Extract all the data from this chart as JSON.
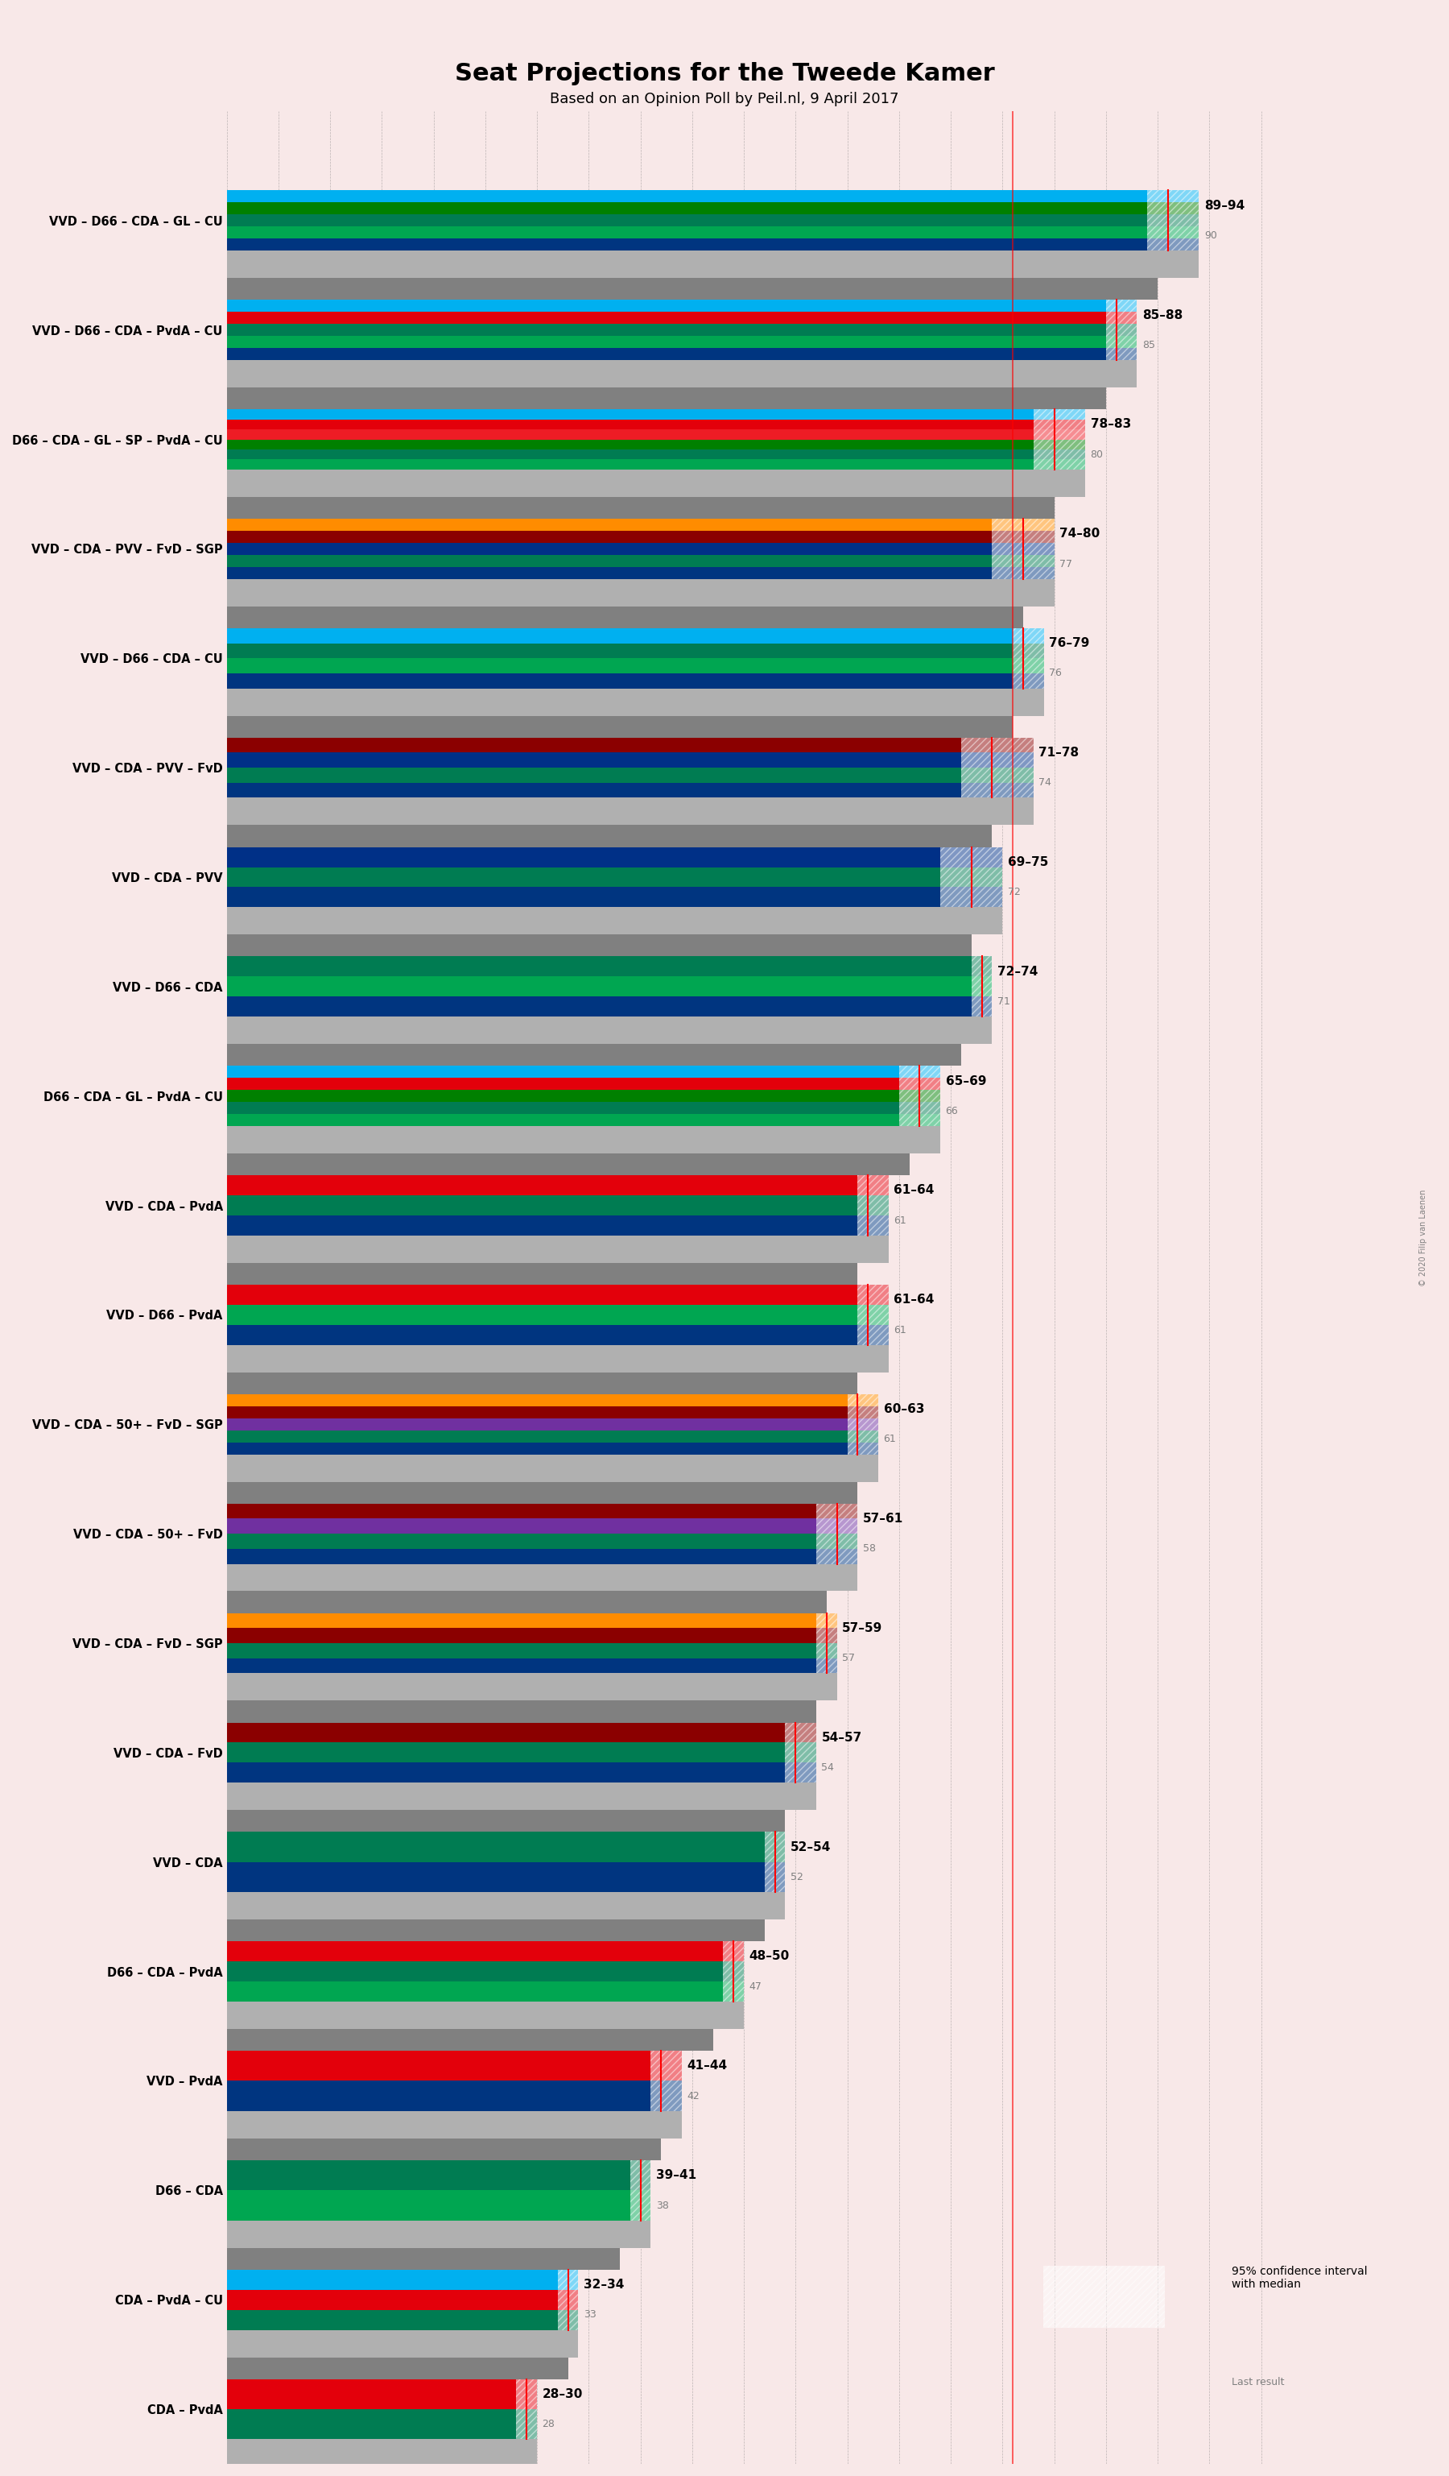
{
  "title": "Seat Projections for the Tweede Kamer",
  "subtitle": "Based on an Opinion Poll by Peil.nl, 9 April 2017",
  "background_color": "#f8e8e8",
  "watermark": "© 2020 Filip van Laenen",
  "coalitions": [
    {
      "label": "VVD – D66 – CDA – GL – CU",
      "lo": 89,
      "hi": 94,
      "median": 91,
      "last": 90,
      "underline": false
    },
    {
      "label": "VVD – D66 – CDA – PvdA – CU",
      "lo": 85,
      "hi": 88,
      "median": 86,
      "last": 85,
      "underline": false
    },
    {
      "label": "D66 – CDA – GL – SP – PvdA – CU",
      "lo": 78,
      "hi": 83,
      "median": 80,
      "last": 80,
      "underline": false
    },
    {
      "label": "VVD – CDA – PVV – FvD – SGP",
      "lo": 74,
      "hi": 80,
      "median": 77,
      "last": 77,
      "underline": false
    },
    {
      "label": "VVD – D66 – CDA – CU",
      "lo": 76,
      "hi": 79,
      "median": 77,
      "last": 76,
      "underline": true
    },
    {
      "label": "VVD – CDA – PVV – FvD",
      "lo": 71,
      "hi": 78,
      "median": 74,
      "last": 74,
      "underline": false
    },
    {
      "label": "VVD – CDA – PVV",
      "lo": 69,
      "hi": 75,
      "median": 72,
      "last": 72,
      "underline": false
    },
    {
      "label": "VVD – D66 – CDA",
      "lo": 72,
      "hi": 74,
      "median": 73,
      "last": 71,
      "underline": false
    },
    {
      "label": "D66 – CDA – GL – PvdA – CU",
      "lo": 65,
      "hi": 69,
      "median": 67,
      "last": 66,
      "underline": false
    },
    {
      "label": "VVD – CDA – PvdA",
      "lo": 61,
      "hi": 64,
      "median": 62,
      "last": 61,
      "underline": false
    },
    {
      "label": "VVD – D66 – PvdA",
      "lo": 61,
      "hi": 64,
      "median": 62,
      "last": 61,
      "underline": false
    },
    {
      "label": "VVD – CDA – 50+ – FvD – SGP",
      "lo": 60,
      "hi": 63,
      "median": 61,
      "last": 61,
      "underline": false
    },
    {
      "label": "VVD – CDA – 50+ – FvD",
      "lo": 57,
      "hi": 61,
      "median": 59,
      "last": 58,
      "underline": false
    },
    {
      "label": "VVD – CDA – FvD – SGP",
      "lo": 57,
      "hi": 59,
      "median": 58,
      "last": 57,
      "underline": false
    },
    {
      "label": "VVD – CDA – FvD",
      "lo": 54,
      "hi": 57,
      "median": 55,
      "last": 54,
      "underline": false
    },
    {
      "label": "VVD – CDA",
      "lo": 52,
      "hi": 54,
      "median": 53,
      "last": 52,
      "underline": false
    },
    {
      "label": "D66 – CDA – PvdA",
      "lo": 48,
      "hi": 50,
      "median": 49,
      "last": 47,
      "underline": false
    },
    {
      "label": "VVD – PvdA",
      "lo": 41,
      "hi": 44,
      "median": 42,
      "last": 42,
      "underline": false
    },
    {
      "label": "D66 – CDA",
      "lo": 39,
      "hi": 41,
      "median": 40,
      "last": 38,
      "underline": false
    },
    {
      "label": "CDA – PvdA – CU",
      "lo": 32,
      "hi": 34,
      "median": 33,
      "last": 33,
      "underline": false
    },
    {
      "label": "CDA – PvdA",
      "lo": 28,
      "hi": 30,
      "median": 29,
      "last": 28,
      "underline": false
    }
  ],
  "party_colors": {
    "VVD": "#003580",
    "D66": "#00a651",
    "CDA": "#007c52",
    "GL": "#008000",
    "CU": "#00b0f0",
    "PvdA": "#e3000b",
    "SP": "#ee1c25",
    "PVV": "#003087",
    "FvD": "#8b0000",
    "SGP": "#ff8c00",
    "50+": "#7030a0"
  },
  "coalition_colors": [
    [
      "#003580",
      "#00a651",
      "#007c52",
      "#008000",
      "#00b0f0"
    ],
    [
      "#003580",
      "#00a651",
      "#007c52",
      "#e3000b",
      "#00b0f0"
    ],
    [
      "#00a651",
      "#007c52",
      "#008000",
      "#ee1c25",
      "#e3000b",
      "#00b0f0"
    ],
    [
      "#003580",
      "#007c52",
      "#003087",
      "#8b0000",
      "#ff8c00"
    ],
    [
      "#003580",
      "#00a651",
      "#007c52",
      "#00b0f0"
    ],
    [
      "#003580",
      "#007c52",
      "#003087",
      "#8b0000"
    ],
    [
      "#003580",
      "#007c52",
      "#003087"
    ],
    [
      "#003580",
      "#00a651",
      "#007c52"
    ],
    [
      "#00a651",
      "#007c52",
      "#008000",
      "#e3000b",
      "#00b0f0"
    ],
    [
      "#003580",
      "#007c52",
      "#e3000b"
    ],
    [
      "#003580",
      "#00a651",
      "#e3000b"
    ],
    [
      "#003580",
      "#007c52",
      "#7030a0",
      "#8b0000",
      "#ff8c00"
    ],
    [
      "#003580",
      "#007c52",
      "#7030a0",
      "#8b0000"
    ],
    [
      "#003580",
      "#007c52",
      "#8b0000",
      "#ff8c00"
    ],
    [
      "#003580",
      "#007c52",
      "#8b0000"
    ],
    [
      "#003580",
      "#007c52"
    ],
    [
      "#00a651",
      "#007c52",
      "#e3000b"
    ],
    [
      "#003580",
      "#e3000b"
    ],
    [
      "#00a651",
      "#007c52"
    ],
    [
      "#007c52",
      "#e3000b",
      "#00b0f0"
    ],
    [
      "#007c52",
      "#e3000b"
    ]
  ],
  "x_min": 0,
  "x_max": 100,
  "majority_line": 76,
  "bar_height": 0.55,
  "ci_bar_height": 0.25,
  "last_bar_height": 0.2
}
